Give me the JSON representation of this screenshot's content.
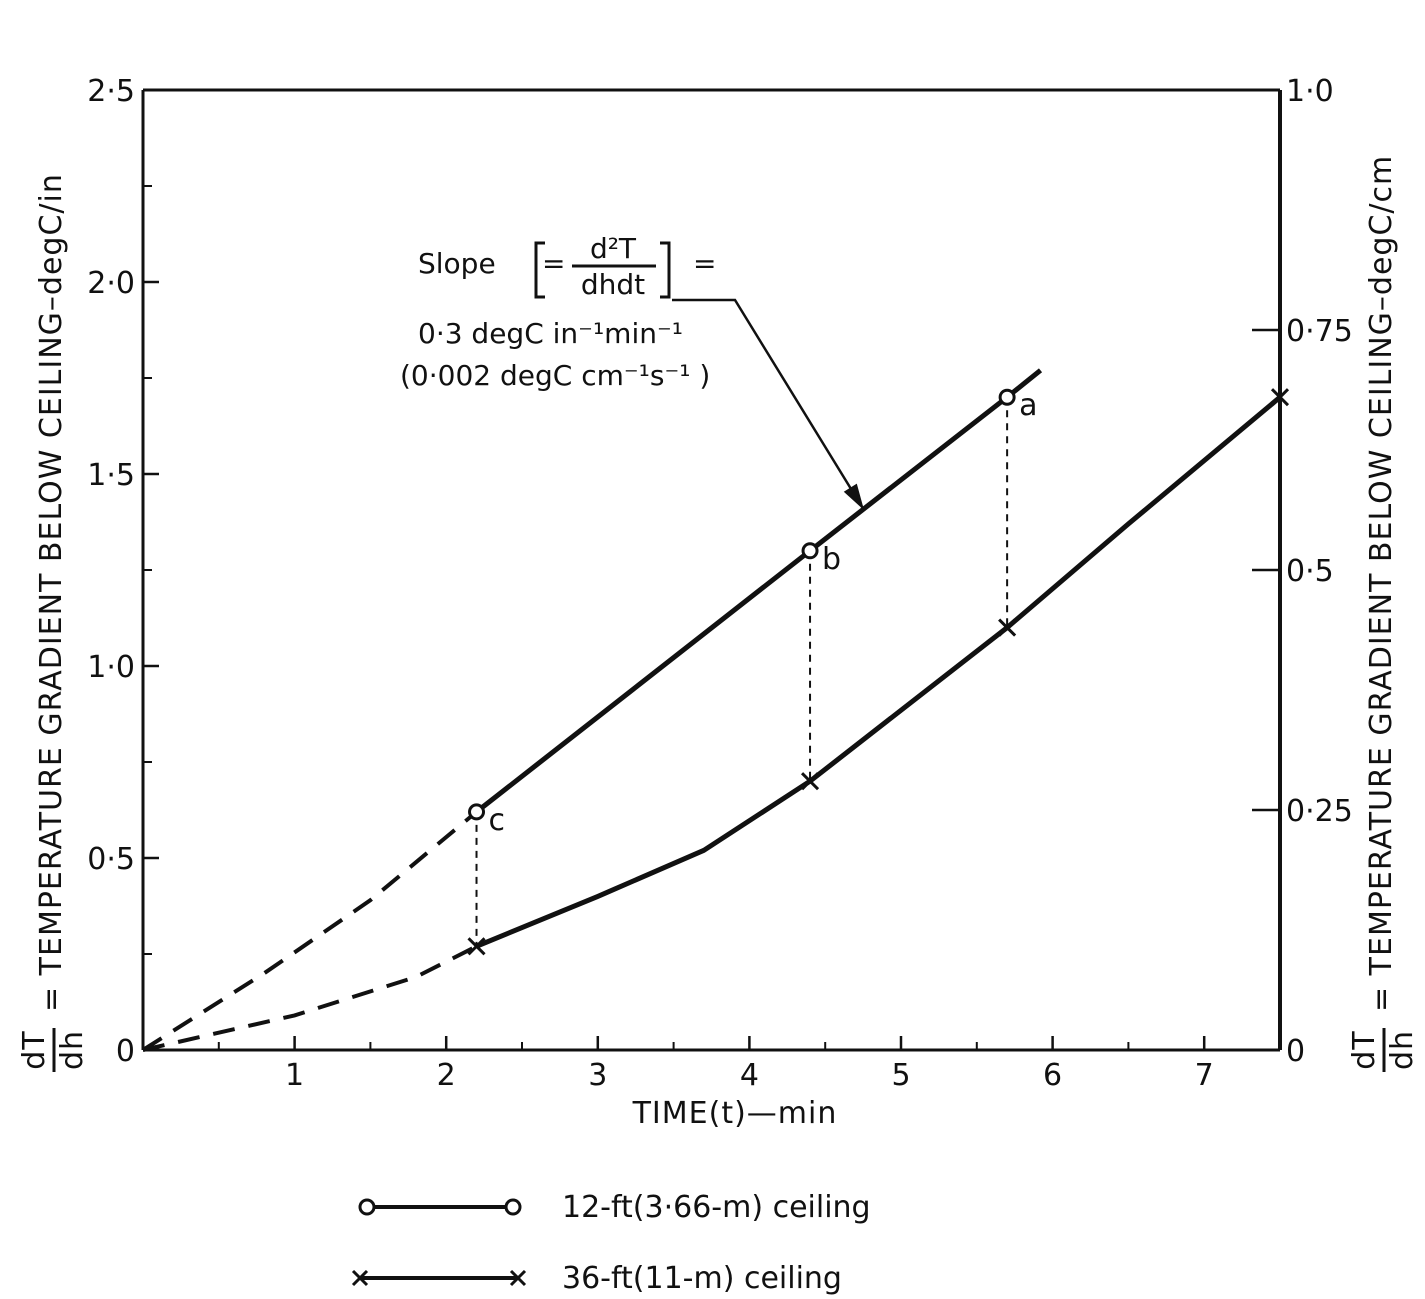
{
  "chart_data": {
    "type": "line",
    "xlabel": "TIME(t)—min",
    "ylabel_left": "dT/dh = TEMPERATURE GRADIENT BELOW CEILING–degC/in",
    "ylabel_right": "dT/dh = TEMPERATURE GRADIENT BELOW CEILING–degC/cm",
    "ylabel_prefix_num": "dT",
    "ylabel_prefix_den": "dh",
    "ylabel_left_text": "= TEMPERATURE GRADIENT BELOW CEILING–degC/in",
    "ylabel_right_text": "= TEMPERATURE GRADIENT BELOW CEILING–degC/cm",
    "xlim": [
      0,
      7.5
    ],
    "ylim_left": [
      0,
      2.5
    ],
    "ylim_right": [
      0,
      1.0
    ],
    "x_ticks": [
      {
        "value": 1,
        "label": "1"
      },
      {
        "value": 2,
        "label": "2"
      },
      {
        "value": 3,
        "label": "3"
      },
      {
        "value": 4,
        "label": "4"
      },
      {
        "value": 5,
        "label": "5"
      },
      {
        "value": 6,
        "label": "6"
      },
      {
        "value": 7,
        "label": "7"
      }
    ],
    "x_minor_ticks": [
      0.5,
      1.5,
      2.5,
      3.5,
      4.5,
      5.5,
      6.5
    ],
    "y_left_ticks": [
      {
        "value": 0,
        "label": "0"
      },
      {
        "value": 0.5,
        "label": "0·5"
      },
      {
        "value": 1.0,
        "label": "1·0"
      },
      {
        "value": 1.5,
        "label": "1·5"
      },
      {
        "value": 2.0,
        "label": "2·0"
      },
      {
        "value": 2.5,
        "label": "2·5"
      }
    ],
    "y_left_minor_ticks": [
      0.25,
      0.75,
      1.25,
      1.75,
      2.25
    ],
    "y_right_ticks": [
      {
        "value": 0,
        "label": "0"
      },
      {
        "value": 0.25,
        "label": "0·25"
      },
      {
        "value": 0.5,
        "label": "0·5"
      },
      {
        "value": 0.75,
        "label": "0·75"
      },
      {
        "value": 1.0,
        "label": "1·0"
      }
    ],
    "series": [
      {
        "name": "12-ft(3·66-m) ceiling",
        "marker": "circle",
        "dashed": [
          [
            0,
            0
          ],
          [
            0.8,
            0.2
          ],
          [
            1.5,
            0.39
          ],
          [
            2.2,
            0.62
          ]
        ],
        "solid": [
          [
            2.2,
            0.62
          ],
          [
            4.4,
            1.3
          ],
          [
            5.7,
            1.7
          ],
          [
            5.92,
            1.77
          ]
        ],
        "markers": [
          {
            "x": 2.2,
            "y": 0.62,
            "label": "c"
          },
          {
            "x": 4.4,
            "y": 1.3,
            "label": "b"
          },
          {
            "x": 5.7,
            "y": 1.7,
            "label": "a"
          }
        ]
      },
      {
        "name": "36-ft(11-m) ceiling",
        "marker": "x",
        "dashed": [
          [
            0,
            0
          ],
          [
            1.0,
            0.09
          ],
          [
            1.8,
            0.19
          ],
          [
            2.2,
            0.27
          ]
        ],
        "solid": [
          [
            2.2,
            0.27
          ],
          [
            3.0,
            0.4
          ],
          [
            3.7,
            0.52
          ],
          [
            4.4,
            0.7
          ],
          [
            5.7,
            1.1
          ],
          [
            6.5,
            1.37
          ],
          [
            7.5,
            1.7
          ]
        ],
        "markers": [
          {
            "x": 2.2,
            "y": 0.27
          },
          {
            "x": 4.4,
            "y": 0.7
          },
          {
            "x": 5.7,
            "y": 1.1
          },
          {
            "x": 7.5,
            "y": 1.7
          }
        ]
      }
    ],
    "drop_lines": [
      {
        "x": 2.2,
        "y_top": 0.62,
        "y_bottom": 0.27
      },
      {
        "x": 4.4,
        "y_top": 1.3,
        "y_bottom": 0.7
      },
      {
        "x": 5.7,
        "y_top": 1.7,
        "y_bottom": 1.1
      }
    ],
    "annotation": {
      "slope_word": "Slope",
      "equals": "=",
      "numerator": "d²T",
      "denominator": "dhdt",
      "line1": "0·3 degC  in⁻¹min⁻¹",
      "line2": "(0·002 degC cm⁻¹s⁻¹ )",
      "arrow_target": {
        "x": 4.75,
        "y": 1.41
      }
    },
    "legend": [
      {
        "marker": "circle",
        "label": "12-ft(3·66-m) ceiling"
      },
      {
        "marker": "x",
        "label": "36-ft(11-m) ceiling"
      }
    ],
    "grid": false,
    "legend_position": "bottom"
  }
}
